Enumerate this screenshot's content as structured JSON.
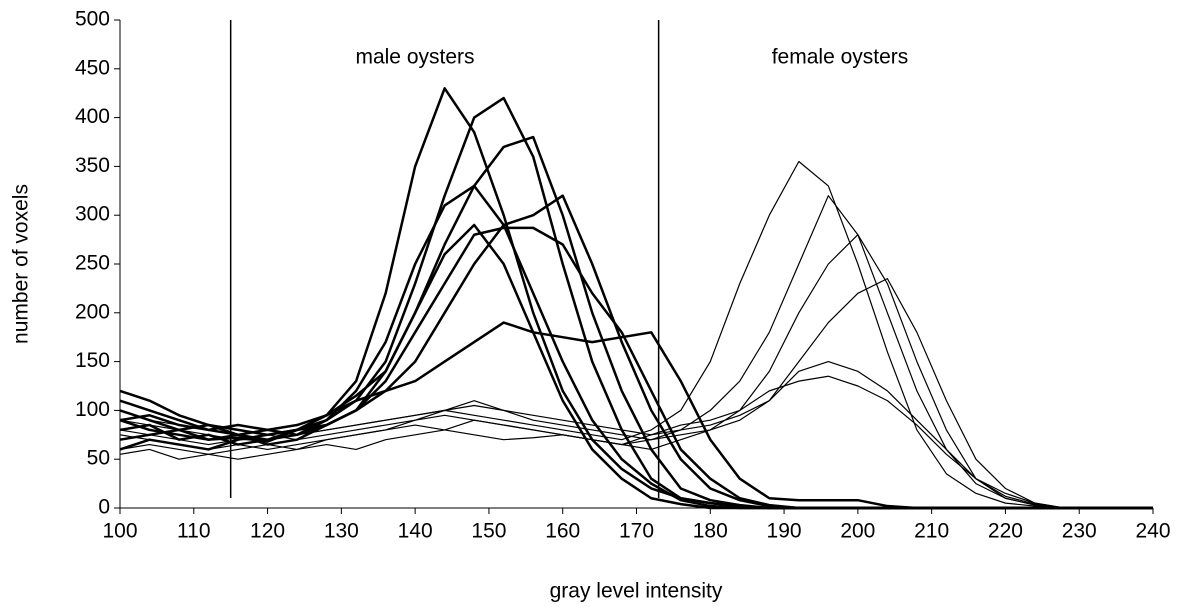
{
  "chart_data": {
    "type": "line",
    "x_label": "gray level intensity",
    "y_label": "number of voxels",
    "xlim": [
      100,
      240
    ],
    "xticks": [
      100,
      110,
      120,
      130,
      140,
      150,
      160,
      170,
      180,
      190,
      200,
      210,
      220,
      230,
      240
    ],
    "ylim": [
      0,
      500
    ],
    "yticks": [
      0,
      50,
      100,
      150,
      200,
      250,
      300,
      350,
      400,
      450,
      500
    ],
    "vertical_lines": [
      115,
      173
    ],
    "annotations": [
      {
        "text": "male oysters"
      },
      {
        "text": "female oysters"
      }
    ],
    "x": [
      100,
      104,
      108,
      112,
      116,
      120,
      124,
      128,
      132,
      136,
      140,
      144,
      148,
      152,
      156,
      160,
      164,
      168,
      172,
      176,
      180,
      184,
      188,
      192,
      196,
      200,
      204,
      208,
      212,
      216,
      220,
      224,
      228,
      232,
      236,
      240
    ],
    "series": [
      {
        "color": "#000000",
        "line_width": 2.5,
        "values": [
          90,
          80,
          75,
          70,
          72,
          68,
          80,
          95,
          130,
          220,
          350,
          430,
          385,
          300,
          200,
          120,
          70,
          40,
          20,
          10,
          5,
          2,
          0,
          0,
          0,
          0,
          0,
          0,
          0,
          0,
          0,
          0,
          0,
          0,
          0,
          0
        ]
      },
      {
        "color": "#000000",
        "line_width": 2.5,
        "values": [
          100,
          90,
          80,
          85,
          75,
          70,
          75,
          90,
          110,
          150,
          230,
          320,
          400,
          420,
          360,
          250,
          150,
          80,
          30,
          10,
          5,
          2,
          0,
          0,
          0,
          0,
          0,
          0,
          0,
          0,
          0,
          0,
          0,
          0,
          0,
          0
        ]
      },
      {
        "color": "#000000",
        "line_width": 2.5,
        "values": [
          120,
          110,
          95,
          85,
          80,
          75,
          80,
          95,
          115,
          140,
          200,
          270,
          330,
          370,
          380,
          300,
          200,
          120,
          60,
          20,
          8,
          3,
          0,
          0,
          0,
          0,
          0,
          0,
          0,
          0,
          0,
          0,
          0,
          0,
          0,
          0
        ]
      },
      {
        "color": "#000000",
        "line_width": 2.5,
        "values": [
          80,
          85,
          70,
          75,
          65,
          70,
          80,
          90,
          120,
          170,
          250,
          310,
          330,
          290,
          220,
          150,
          90,
          50,
          25,
          8,
          2,
          0,
          0,
          0,
          0,
          0,
          0,
          0,
          0,
          0,
          0,
          0,
          0,
          0,
          0,
          0
        ]
      },
      {
        "color": "#000000",
        "line_width": 2.5,
        "values": [
          110,
          100,
          90,
          80,
          85,
          80,
          75,
          85,
          100,
          130,
          180,
          230,
          280,
          287,
          287,
          270,
          220,
          180,
          120,
          60,
          30,
          10,
          3,
          0,
          0,
          0,
          0,
          0,
          0,
          0,
          0,
          0,
          0,
          0,
          0,
          0
        ]
      },
      {
        "color": "#000000",
        "line_width": 2.5,
        "values": [
          70,
          75,
          80,
          70,
          75,
          65,
          70,
          85,
          100,
          120,
          150,
          200,
          250,
          290,
          300,
          320,
          250,
          170,
          100,
          50,
          20,
          8,
          2,
          0,
          0,
          0,
          0,
          0,
          0,
          0,
          0,
          0,
          0,
          0,
          0,
          0
        ]
      },
      {
        "color": "#000000",
        "line_width": 2.5,
        "values": [
          90,
          95,
          85,
          80,
          75,
          80,
          85,
          95,
          110,
          120,
          130,
          150,
          170,
          190,
          180,
          175,
          170,
          175,
          180,
          130,
          70,
          30,
          10,
          8,
          8,
          8,
          2,
          0,
          0,
          0,
          0,
          0,
          0,
          0,
          0,
          0
        ]
      },
      {
        "color": "#000000",
        "line_width": 2.5,
        "values": [
          60,
          70,
          65,
          60,
          70,
          75,
          80,
          85,
          100,
          140,
          200,
          260,
          290,
          250,
          180,
          110,
          60,
          30,
          10,
          4,
          0,
          0,
          0,
          0,
          0,
          0,
          0,
          0,
          0,
          0,
          0,
          0,
          0,
          0,
          0,
          0
        ]
      },
      {
        "color": "#000000",
        "line_width": 1.2,
        "values": [
          100,
          90,
          85,
          80,
          75,
          70,
          75,
          80,
          85,
          90,
          95,
          100,
          95,
          90,
          85,
          80,
          75,
          70,
          80,
          100,
          150,
          230,
          300,
          355,
          330,
          250,
          160,
          80,
          35,
          15,
          5,
          2,
          0,
          0,
          0,
          0
        ]
      },
      {
        "color": "#000000",
        "line_width": 1.2,
        "values": [
          80,
          75,
          70,
          65,
          70,
          75,
          70,
          75,
          80,
          85,
          90,
          95,
          90,
          85,
          80,
          75,
          70,
          65,
          70,
          80,
          100,
          130,
          180,
          250,
          320,
          280,
          200,
          120,
          60,
          25,
          10,
          3,
          0,
          0,
          0,
          0
        ]
      },
      {
        "color": "#000000",
        "line_width": 1.2,
        "values": [
          60,
          65,
          60,
          55,
          60,
          65,
          60,
          70,
          75,
          80,
          85,
          80,
          75,
          70,
          72,
          75,
          70,
          65,
          60,
          70,
          80,
          100,
          140,
          200,
          250,
          280,
          230,
          150,
          80,
          30,
          10,
          3,
          0,
          0,
          0,
          0
        ]
      },
      {
        "color": "#000000",
        "line_width": 1.2,
        "values": [
          90,
          85,
          80,
          75,
          70,
          70,
          75,
          80,
          85,
          90,
          95,
          100,
          105,
          100,
          95,
          90,
          85,
          80,
          75,
          80,
          85,
          95,
          110,
          150,
          190,
          220,
          235,
          180,
          110,
          50,
          20,
          5,
          0,
          0,
          0,
          0
        ]
      },
      {
        "color": "#000000",
        "line_width": 1.2,
        "values": [
          75,
          70,
          65,
          60,
          65,
          60,
          65,
          70,
          75,
          80,
          90,
          100,
          110,
          100,
          90,
          85,
          80,
          75,
          70,
          75,
          80,
          90,
          110,
          140,
          150,
          140,
          120,
          90,
          60,
          30,
          12,
          4,
          0,
          0,
          0,
          0
        ]
      },
      {
        "color": "#000000",
        "line_width": 1.2,
        "values": [
          55,
          60,
          50,
          55,
          50,
          55,
          60,
          65,
          60,
          70,
          75,
          80,
          90,
          85,
          80,
          75,
          70,
          65,
          75,
          85,
          90,
          100,
          120,
          130,
          135,
          125,
          110,
          85,
          55,
          30,
          15,
          5,
          0,
          0,
          0,
          0
        ]
      }
    ]
  }
}
